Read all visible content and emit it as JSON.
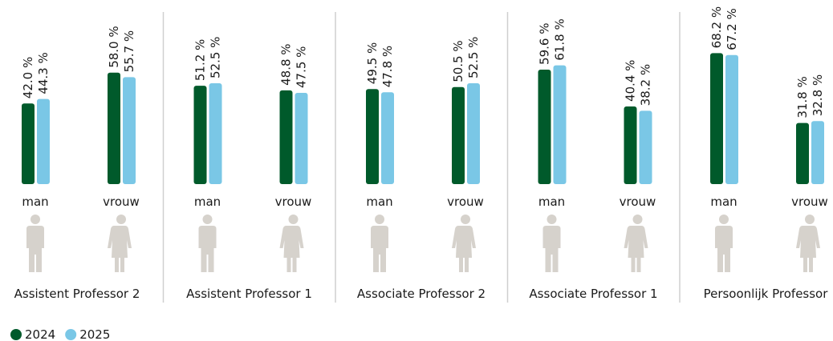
{
  "chart_data": {
    "type": "bar",
    "groups": [
      "Assistent Professor 2",
      "Assistent Professor 1",
      "Associate Professor 2",
      "Associate Professor 1",
      "Persoonlijk Professor"
    ],
    "categories": [
      "man",
      "vrouw",
      "man",
      "vrouw",
      "man",
      "vrouw",
      "man",
      "vrouw",
      "man",
      "vrouw"
    ],
    "series": [
      {
        "name": "2024",
        "color": "#005a2b",
        "values": [
          42.0,
          58.0,
          51.2,
          48.8,
          49.5,
          50.5,
          59.6,
          40.4,
          68.2,
          31.8
        ],
        "value_labels": [
          "42.0 %",
          "58.0 %",
          "51.2 %",
          "48.8 %",
          "49.5 %",
          "50.5 %",
          "59.6 %",
          "40.4 %",
          "68.2 %",
          "31.8 %"
        ]
      },
      {
        "name": "2025",
        "color": "#7ac7e6",
        "values": [
          44.3,
          55.7,
          52.5,
          47.5,
          47.8,
          52.5,
          61.8,
          38.2,
          67.2,
          32.8
        ],
        "value_labels": [
          "44.3 %",
          "55.7 %",
          "52.5 %",
          "47.5 %",
          "47.8 %",
          "52.5 %",
          "61.8 %",
          "38.2 %",
          "67.2 %",
          "32.8 %"
        ]
      }
    ]
  }
}
